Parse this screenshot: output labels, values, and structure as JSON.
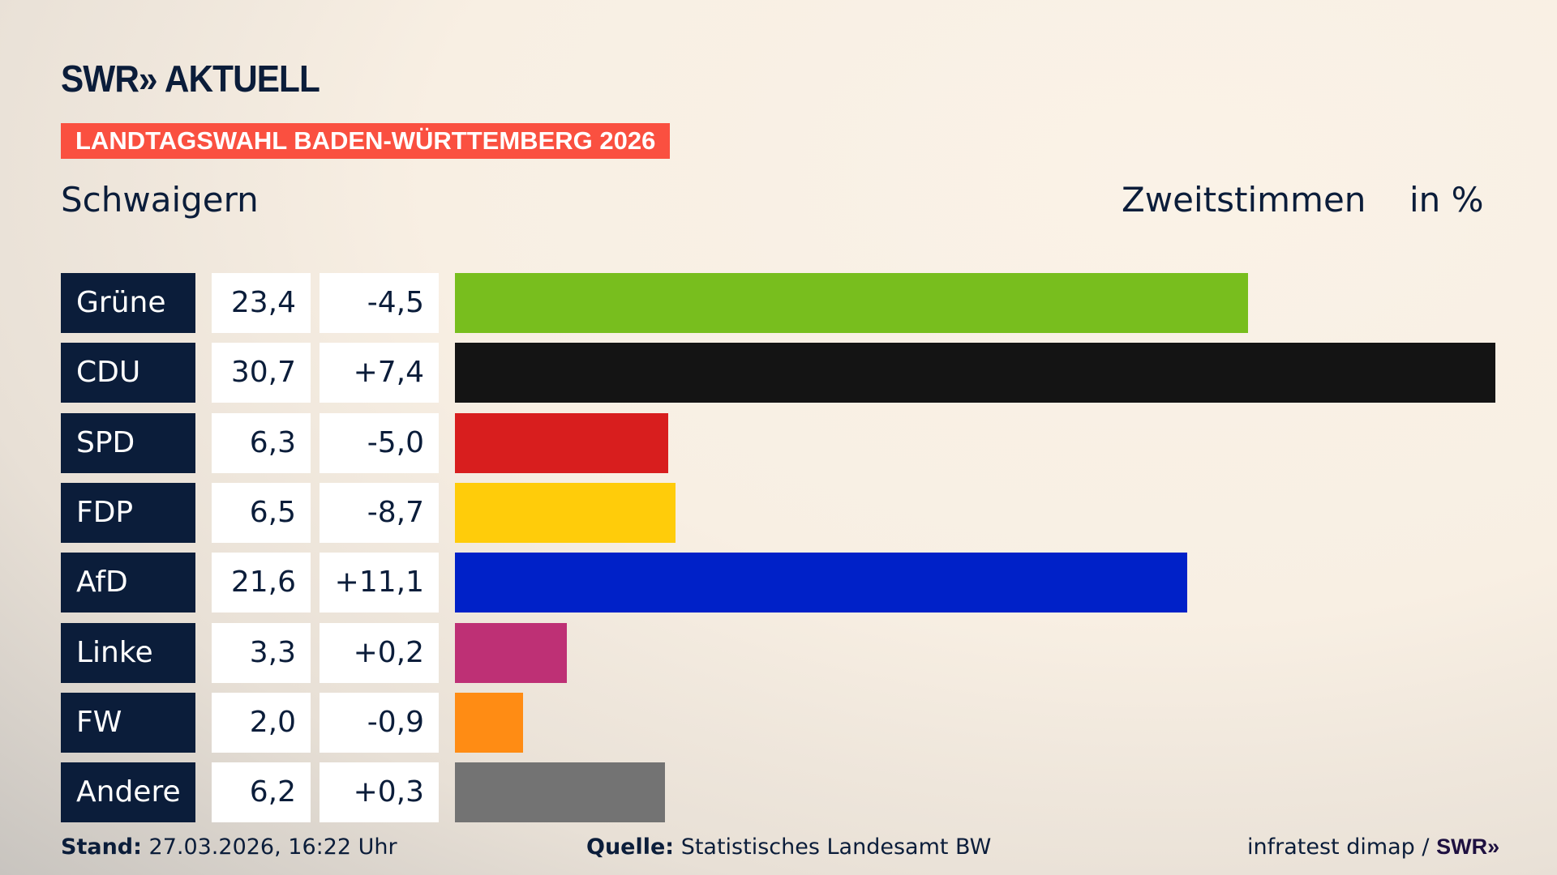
{
  "header": {
    "logo": "SWR» AKTUELL",
    "banner": "LANDTAGSWAHL BADEN-WÜRTTEMBERG 2026",
    "place": "Schwaigern",
    "metric": "Zweitstimmen",
    "unit": "in %"
  },
  "chart_data": {
    "type": "bar",
    "orientation": "horizontal",
    "xlim": [
      0,
      30.7
    ],
    "grid": false,
    "categories": [
      "Grüne",
      "CDU",
      "SPD",
      "FDP",
      "AfD",
      "Linke",
      "FW",
      "Andere"
    ],
    "values": [
      23.4,
      30.7,
      6.3,
      6.5,
      21.6,
      3.3,
      2.0,
      6.2
    ],
    "value_labels": [
      "23,4",
      "30,7",
      "6,3",
      "6,5",
      "21,6",
      "3,3",
      "2,0",
      "6,2"
    ],
    "diff_labels": [
      "-4,5",
      "+7,4",
      "-5,0",
      "-8,7",
      "+11,1",
      "+0,2",
      "-0,9",
      "+0,3"
    ],
    "colors": [
      "#78be1e",
      "#141414",
      "#d81e1e",
      "#ffcc0a",
      "#0021c8",
      "#be3075",
      "#ff8c14",
      "#737373"
    ]
  },
  "footer": {
    "stand_label": "Stand:",
    "stand": "27.03.2026, 16:22 Uhr",
    "source_label": "Quelle:",
    "source": "Statistisches Landesamt BW",
    "credit": "infratest dimap / ",
    "credit_logo": "SWR»"
  }
}
